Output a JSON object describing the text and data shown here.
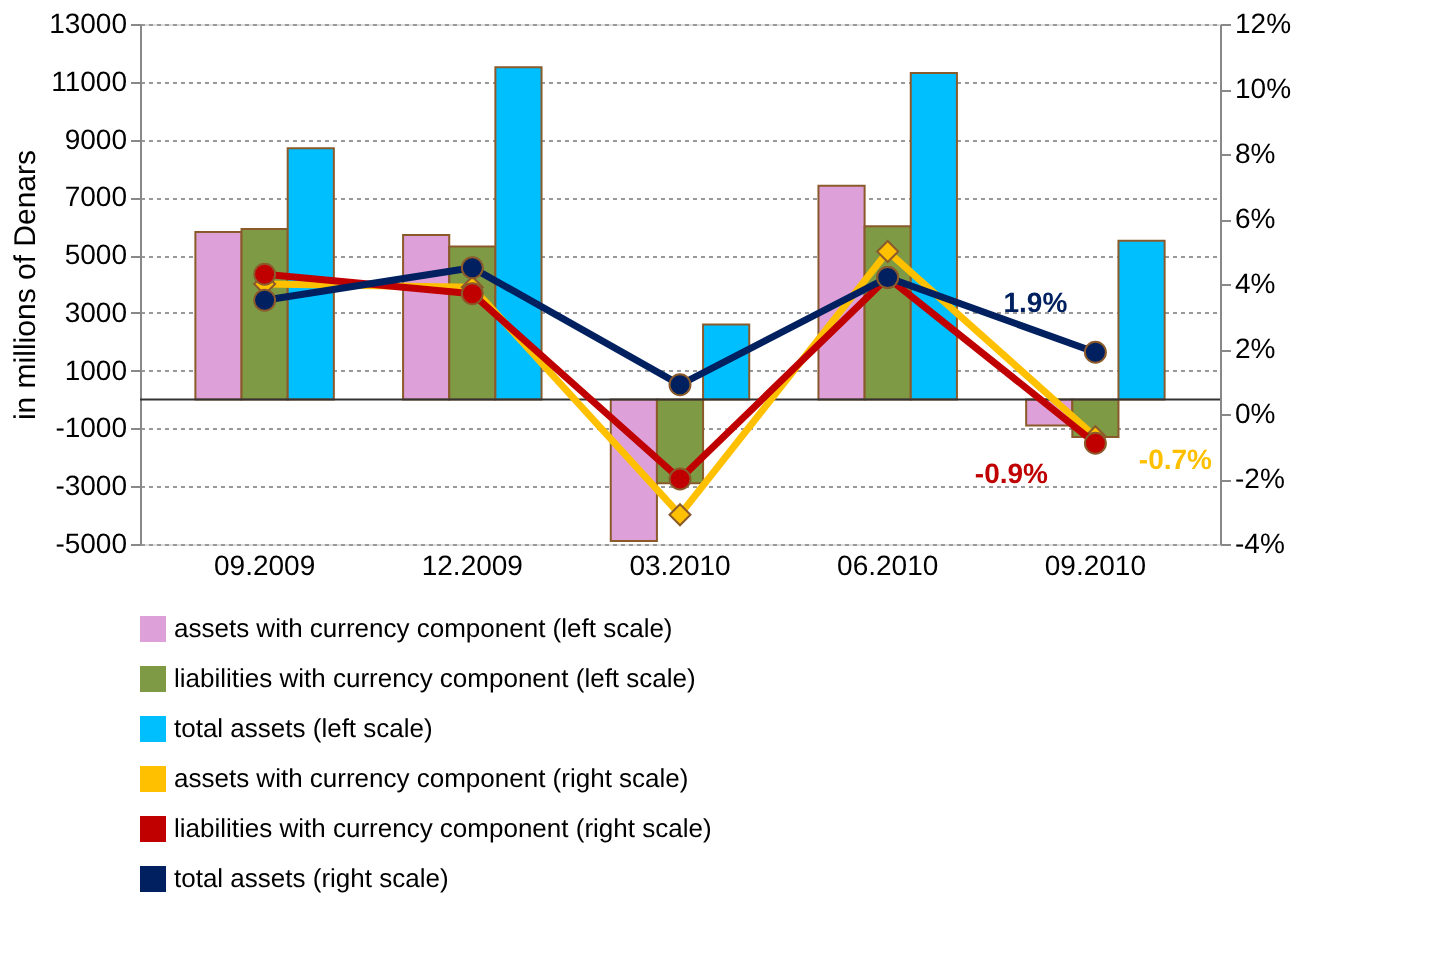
{
  "chart_data": {
    "type": "bar",
    "ylabel": "in millions of Denars",
    "categories": [
      "09.2009",
      "12.2009",
      "03.2010",
      "06.2010",
      "09.2010"
    ],
    "series": [
      {
        "name": "assets with currency component (left scale)",
        "color": "#dda0d8",
        "values": [
          5800,
          5700,
          -4900,
          7400,
          -900
        ]
      },
      {
        "name": "liabilities with currency component (left scale)",
        "color": "#7f9a45",
        "values": [
          5900,
          5300,
          -2900,
          6000,
          -1300
        ]
      },
      {
        "name": "total assets (left scale)",
        "color": "#00bfff",
        "values": [
          8700,
          11500,
          2600,
          11300,
          5500
        ]
      },
      {
        "name": "assets with currency component (right scale)",
        "type": "line",
        "axis": "y2",
        "marker": "diamond",
        "color": "#ffc000",
        "values": [
          4.0,
          3.9,
          -3.1,
          5.0,
          -0.7
        ],
        "value_labels": [
          null,
          null,
          null,
          null,
          "-0.7%"
        ]
      },
      {
        "name": "liabilities with currency component (right scale)",
        "type": "line",
        "axis": "y2",
        "marker": "circle",
        "color": "#c00000",
        "values": [
          4.3,
          3.7,
          -2.0,
          4.2,
          -0.9
        ],
        "value_labels": [
          null,
          null,
          null,
          null,
          "-0.9%"
        ]
      },
      {
        "name": "total assets (right scale)",
        "type": "line",
        "axis": "y2",
        "marker": "circle",
        "color": "#002060",
        "values": [
          3.5,
          4.5,
          0.9,
          4.2,
          1.9
        ],
        "value_labels": [
          null,
          null,
          null,
          null,
          "1.9%"
        ]
      }
    ],
    "ylim": [
      -5000,
      13000
    ],
    "yticks": [
      -5000,
      -3000,
      -1000,
      1000,
      3000,
      5000,
      7000,
      9000,
      11000,
      13000
    ],
    "y2lim": [
      -4,
      12
    ],
    "y2ticks": [
      {
        "value": -4,
        "label": "-4%"
      },
      {
        "value": -2,
        "label": "-2%"
      },
      {
        "value": 0,
        "label": "0%"
      },
      {
        "value": 2,
        "label": "2%"
      },
      {
        "value": 4,
        "label": "4%"
      },
      {
        "value": 6,
        "label": "6%"
      },
      {
        "value": 8,
        "label": "8%"
      },
      {
        "value": 10,
        "label": "10%"
      },
      {
        "value": 12,
        "label": "12%"
      }
    ],
    "grid": "y",
    "legend": "bottom"
  }
}
